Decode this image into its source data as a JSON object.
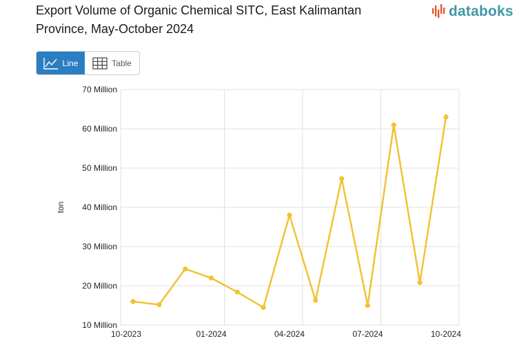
{
  "header": {
    "title": "Export Volume of Organic Chemical SITC, East Kalimantan Province, May-October 2024",
    "logo_text": "databoks"
  },
  "view_toggle": {
    "line_label": "Line",
    "table_label": "Table",
    "active": "Line"
  },
  "colors": {
    "series": "#f2c233",
    "accent": "#2b7ec1",
    "brand": "#3f98a6",
    "grid": "#e0e0e0"
  },
  "chart_data": {
    "type": "line",
    "title": "Export Volume of Organic Chemical SITC, East Kalimantan Province, May-October 2024",
    "ylabel": "ton",
    "xlabel": "",
    "ylim": [
      10,
      70
    ],
    "y_ticks": [
      10,
      20,
      30,
      40,
      50,
      60,
      70
    ],
    "y_tick_labels": [
      "10 Million",
      "20 Million",
      "30 Million",
      "40 Million",
      "50 Million",
      "60 Million",
      "70 Million"
    ],
    "x_tick_labels": [
      "10-2023",
      "01-2024",
      "04-2024",
      "07-2024",
      "10-2024"
    ],
    "x_tick_index": [
      0,
      3,
      6,
      9,
      12
    ],
    "categories": [
      "10-2023",
      "11-2023",
      "12-2023",
      "01-2024",
      "02-2024",
      "03-2024",
      "04-2024",
      "05-2024",
      "06-2024",
      "07-2024",
      "08-2024",
      "09-2024",
      "10-2024"
    ],
    "series": [
      {
        "name": "Export Volume (ton)",
        "values": [
          16,
          15.2,
          24.3,
          22,
          18.4,
          14.5,
          38,
          16.3,
          47.3,
          15,
          61,
          20.8,
          63
        ]
      }
    ],
    "value_unit": "Million ton"
  }
}
